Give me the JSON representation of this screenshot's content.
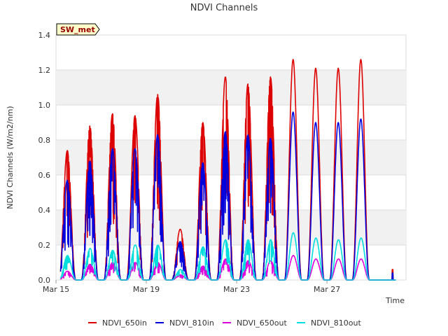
{
  "chart_data": {
    "type": "line",
    "title": "NDVI Channels",
    "xlabel": "Time",
    "ylabel": "NDVI Channels (W/m2/nm)",
    "badge": "SW_met",
    "xlim": [
      0,
      15.5
    ],
    "ylim": [
      0,
      1.4
    ],
    "yticks": [
      0.0,
      0.2,
      0.4,
      0.6,
      0.8,
      1.0,
      1.2,
      1.4
    ],
    "ytick_labels": [
      "0.0",
      "0.2",
      "0.4",
      "0.6",
      "0.8",
      "1.0",
      "1.2",
      "1.4"
    ],
    "xticks": [
      0,
      4,
      8,
      12
    ],
    "xtick_labels": [
      "Mar 15",
      "Mar 19",
      "Mar 23",
      "Mar 27"
    ],
    "grid": "horizontal bands",
    "legend_position": "bottom",
    "series": [
      {
        "name": "NDVI_650in",
        "color": "#dd0000",
        "daily_peaks": [
          0.74,
          0.88,
          0.95,
          0.94,
          1.06,
          0.29,
          0.9,
          1.16,
          1.12,
          1.16,
          1.26,
          1.21,
          1.21,
          1.26
        ],
        "last_value": 0.06
      },
      {
        "name": "NDVI_810in",
        "color": "#0000dd",
        "daily_peaks": [
          0.57,
          0.68,
          0.75,
          0.75,
          0.83,
          0.22,
          0.67,
          0.85,
          0.83,
          0.81,
          0.96,
          0.9,
          0.9,
          0.92
        ],
        "last_value": 0.04
      },
      {
        "name": "NDVI_650out",
        "color": "#dd00dd",
        "daily_peaks": [
          0.05,
          0.09,
          0.1,
          0.1,
          0.1,
          0.03,
          0.08,
          0.12,
          0.11,
          0.11,
          0.14,
          0.12,
          0.12,
          0.12
        ],
        "last_value": 0.0
      },
      {
        "name": "NDVI_810out",
        "color": "#00dddd",
        "daily_peaks": [
          0.14,
          0.18,
          0.17,
          0.2,
          0.2,
          0.06,
          0.19,
          0.23,
          0.23,
          0.23,
          0.27,
          0.24,
          0.23,
          0.24
        ],
        "last_value": 0.0
      }
    ]
  }
}
